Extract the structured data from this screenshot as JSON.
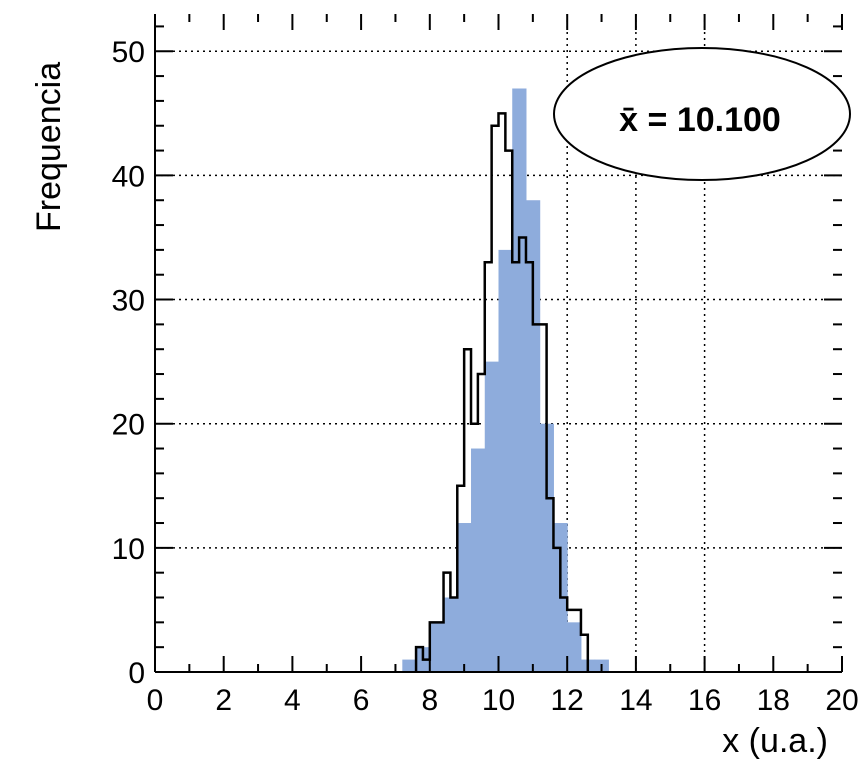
{
  "chart_data": {
    "type": "histogram",
    "title": "",
    "xlabel": "x (u.a.)",
    "ylabel": "Frequencia",
    "xlim": [
      0,
      20
    ],
    "ylim": [
      0,
      53
    ],
    "x_ticks": [
      "0",
      "2",
      "4",
      "6",
      "8",
      "10",
      "12",
      "14",
      "16",
      "18",
      "20"
    ],
    "y_ticks": [
      "0",
      "10",
      "20",
      "30",
      "40",
      "50"
    ],
    "grid": true,
    "colors": {
      "filled": "#8eacdc",
      "outline": "#000000"
    },
    "series": [
      {
        "style": "filled",
        "bin_edges": [
          7.2,
          7.6,
          8.0,
          8.4,
          8.8,
          9.2,
          9.6,
          10.0,
          10.4,
          10.8,
          11.2,
          11.6,
          12.0,
          12.4,
          12.8,
          13.2
        ],
        "counts": [
          1,
          2,
          4,
          6,
          12,
          18,
          25,
          34,
          47,
          38,
          20,
          12,
          4,
          1,
          1
        ]
      },
      {
        "style": "outline",
        "bin_edges": [
          7.6,
          7.8,
          8.0,
          8.2,
          8.4,
          8.6,
          8.8,
          9.0,
          9.2,
          9.4,
          9.6,
          9.8,
          10.0,
          10.2,
          10.4,
          10.6,
          10.8,
          11.0,
          11.2,
          11.4,
          11.6,
          11.8,
          12.0,
          12.2,
          12.4,
          12.6
        ],
        "counts": [
          2,
          1,
          4,
          4,
          8,
          6,
          15,
          26,
          20,
          24,
          33,
          44,
          45,
          42,
          33,
          35,
          33,
          28,
          28,
          14,
          10,
          6,
          5,
          5,
          3
        ]
      }
    ],
    "annotation": {
      "text": "x̄ = 10.100",
      "shape": "ellipse"
    }
  }
}
